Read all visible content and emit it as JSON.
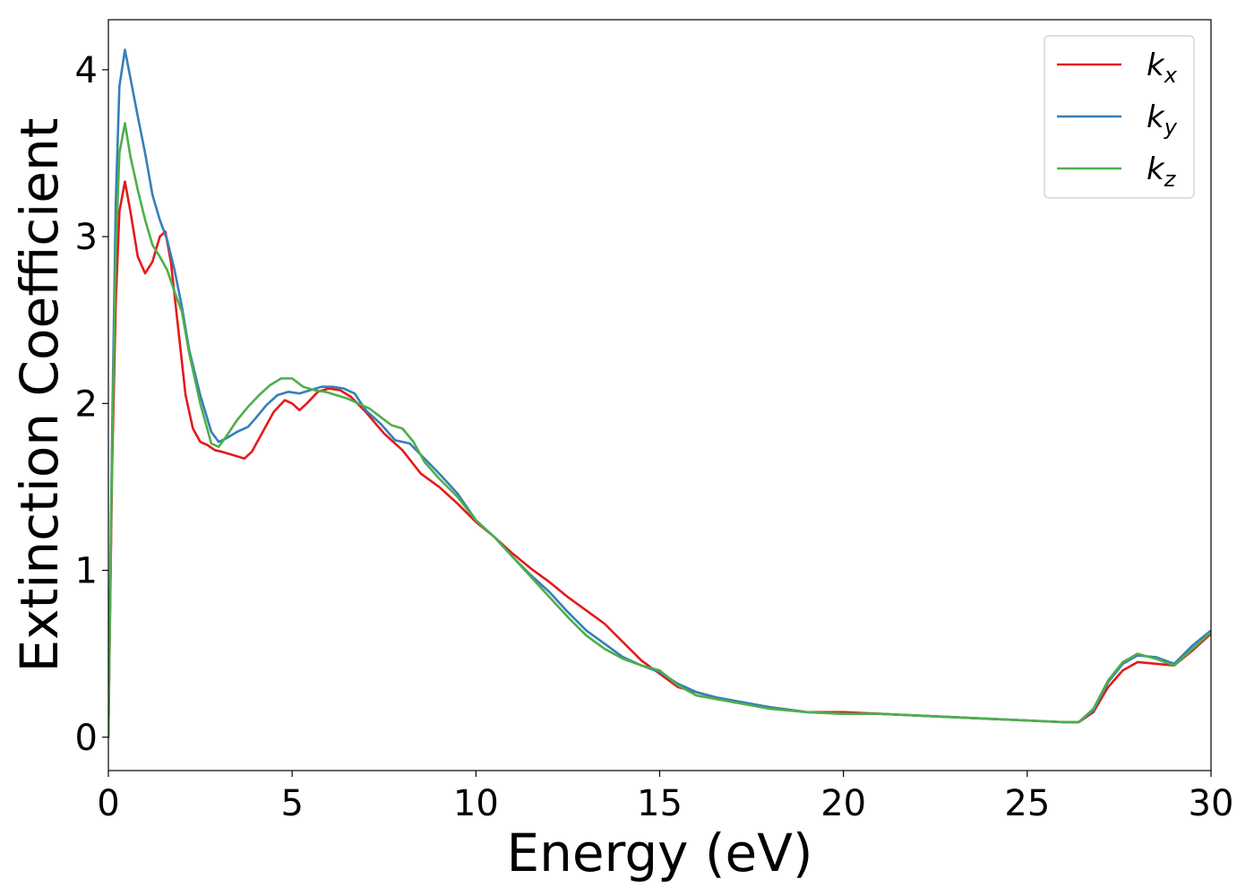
{
  "chart_data": {
    "type": "line",
    "xlabel": "Energy (eV)",
    "ylabel": "Extinction Coefficient",
    "xlim": [
      0,
      30
    ],
    "ylim": [
      -0.2,
      4.3
    ],
    "xticks": [
      0,
      5,
      10,
      15,
      20,
      25,
      30
    ],
    "yticks": [
      0,
      1,
      2,
      3,
      4
    ],
    "grid": false,
    "legend_position": "top-right",
    "series": [
      {
        "name": "k",
        "subscript": "x",
        "color": "#e41a1c",
        "x": [
          0,
          0.1,
          0.2,
          0.3,
          0.45,
          0.6,
          0.8,
          1.0,
          1.2,
          1.4,
          1.55,
          1.7,
          1.9,
          2.1,
          2.3,
          2.5,
          2.7,
          2.9,
          3.1,
          3.4,
          3.7,
          3.9,
          4.2,
          4.5,
          4.8,
          5.0,
          5.2,
          5.4,
          5.7,
          6.0,
          6.3,
          6.6,
          7.0,
          7.5,
          8.0,
          8.5,
          9.0,
          9.5,
          10.0,
          10.5,
          11.0,
          11.5,
          12.0,
          12.5,
          13.0,
          13.5,
          14.0,
          14.5,
          15.0,
          15.5,
          16.0,
          16.5,
          17.0,
          18.0,
          19.0,
          20.0,
          21.0,
          22.0,
          23.0,
          24.0,
          25.0,
          26.0,
          26.4,
          26.8,
          27.2,
          27.6,
          28.0,
          28.5,
          29.0,
          29.5,
          30.0
        ],
        "y": [
          0.0,
          1.6,
          2.6,
          3.15,
          3.33,
          3.15,
          2.88,
          2.78,
          2.85,
          3.0,
          3.03,
          2.85,
          2.45,
          2.05,
          1.85,
          1.77,
          1.75,
          1.72,
          1.71,
          1.69,
          1.67,
          1.71,
          1.83,
          1.95,
          2.02,
          2.0,
          1.96,
          2.0,
          2.07,
          2.09,
          2.08,
          2.04,
          1.95,
          1.82,
          1.72,
          1.58,
          1.5,
          1.4,
          1.29,
          1.2,
          1.1,
          1.01,
          0.93,
          0.84,
          0.76,
          0.68,
          0.57,
          0.46,
          0.38,
          0.3,
          0.27,
          0.24,
          0.21,
          0.18,
          0.15,
          0.15,
          0.14,
          0.13,
          0.12,
          0.11,
          0.1,
          0.09,
          0.09,
          0.15,
          0.3,
          0.4,
          0.45,
          0.44,
          0.43,
          0.52,
          0.62
        ]
      },
      {
        "name": "k",
        "subscript": "y",
        "color": "#377eb8",
        "x": [
          0,
          0.1,
          0.2,
          0.3,
          0.45,
          0.6,
          0.8,
          1.0,
          1.2,
          1.4,
          1.6,
          1.8,
          2.0,
          2.2,
          2.5,
          2.8,
          3.0,
          3.2,
          3.5,
          3.8,
          4.0,
          4.3,
          4.6,
          4.9,
          5.2,
          5.5,
          5.8,
          6.1,
          6.4,
          6.7,
          7.0,
          7.4,
          7.8,
          8.2,
          8.6,
          9.0,
          9.5,
          10.0,
          10.5,
          11.0,
          11.5,
          12.0,
          12.5,
          13.0,
          13.5,
          14.0,
          14.5,
          15.0,
          15.5,
          16.0,
          16.5,
          17.0,
          18.0,
          19.0,
          20.0,
          21.0,
          22.0,
          23.0,
          24.0,
          25.0,
          26.0,
          26.4,
          26.8,
          27.2,
          27.6,
          28.0,
          28.5,
          29.0,
          29.5,
          30.0
        ],
        "y": [
          0.0,
          1.8,
          3.2,
          3.9,
          4.12,
          3.95,
          3.72,
          3.5,
          3.25,
          3.1,
          2.98,
          2.8,
          2.58,
          2.32,
          2.05,
          1.83,
          1.77,
          1.79,
          1.83,
          1.86,
          1.91,
          1.99,
          2.05,
          2.07,
          2.06,
          2.08,
          2.1,
          2.1,
          2.09,
          2.06,
          1.96,
          1.88,
          1.78,
          1.76,
          1.67,
          1.58,
          1.46,
          1.3,
          1.2,
          1.08,
          0.97,
          0.87,
          0.75,
          0.64,
          0.56,
          0.48,
          0.43,
          0.39,
          0.32,
          0.27,
          0.24,
          0.22,
          0.18,
          0.15,
          0.14,
          0.14,
          0.13,
          0.12,
          0.11,
          0.1,
          0.09,
          0.09,
          0.16,
          0.33,
          0.44,
          0.49,
          0.48,
          0.44,
          0.55,
          0.64
        ]
      },
      {
        "name": "k",
        "subscript": "z",
        "color": "#4daf4a",
        "x": [
          0,
          0.1,
          0.2,
          0.3,
          0.45,
          0.6,
          0.8,
          1.0,
          1.2,
          1.4,
          1.6,
          1.8,
          2.0,
          2.2,
          2.5,
          2.8,
          3.0,
          3.2,
          3.5,
          3.8,
          4.1,
          4.4,
          4.7,
          5.0,
          5.3,
          5.6,
          5.9,
          6.2,
          6.5,
          6.8,
          7.1,
          7.4,
          7.7,
          8.0,
          8.3,
          8.6,
          9.0,
          9.5,
          10.0,
          10.5,
          11.0,
          11.5,
          12.0,
          12.5,
          13.0,
          13.5,
          14.0,
          14.5,
          15.0,
          15.5,
          16.0,
          16.5,
          17.0,
          18.0,
          19.0,
          20.0,
          21.0,
          22.0,
          23.0,
          24.0,
          25.0,
          26.0,
          26.4,
          26.8,
          27.2,
          27.6,
          28.0,
          28.5,
          29.0,
          29.5,
          30.0
        ],
        "y": [
          0.0,
          1.7,
          2.9,
          3.5,
          3.68,
          3.48,
          3.28,
          3.1,
          2.95,
          2.88,
          2.8,
          2.67,
          2.55,
          2.3,
          2.0,
          1.76,
          1.74,
          1.8,
          1.9,
          1.98,
          2.05,
          2.11,
          2.15,
          2.15,
          2.1,
          2.08,
          2.07,
          2.05,
          2.03,
          2.0,
          1.97,
          1.92,
          1.87,
          1.85,
          1.77,
          1.65,
          1.55,
          1.44,
          1.3,
          1.2,
          1.08,
          0.96,
          0.84,
          0.72,
          0.61,
          0.53,
          0.47,
          0.43,
          0.4,
          0.31,
          0.25,
          0.23,
          0.21,
          0.17,
          0.15,
          0.14,
          0.14,
          0.13,
          0.12,
          0.11,
          0.1,
          0.09,
          0.09,
          0.17,
          0.34,
          0.45,
          0.5,
          0.47,
          0.43,
          0.53,
          0.63
        ]
      }
    ]
  }
}
